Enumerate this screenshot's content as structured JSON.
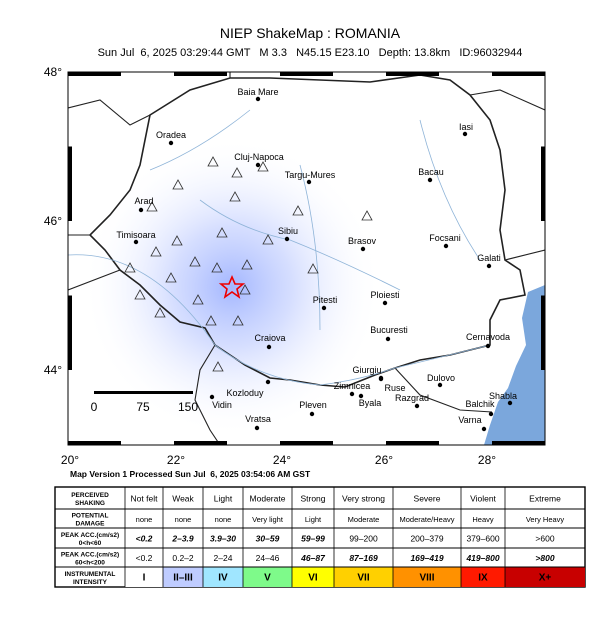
{
  "header": {
    "title": "NIEP ShakeMap : ROMANIA",
    "subtitle": "Sun Jul  6, 2025 03:29:44 GMT   M 3.3   N45.15 E23.10   Depth: 13.8km   ID:96032944"
  },
  "map": {
    "lat_labels": [
      "48°",
      "46°",
      "44°"
    ],
    "lon_labels": [
      "20°",
      "22°",
      "24°",
      "26°",
      "28°"
    ],
    "cities": [
      "Baia Mare",
      "Oradea",
      "Cluj-Napoca",
      "Targu-Mures",
      "Iasi",
      "Bacau",
      "Arad",
      "Timisoara",
      "Sibiu",
      "Brasov",
      "Focsani",
      "Galati",
      "Pitesti",
      "Ploiesti",
      "Bucuresti",
      "Cernavoda",
      "Craiova",
      "Giurgiu",
      "Zimnicea",
      "Ruse",
      "Dulovo",
      "Kozloduy",
      "Vidin",
      "Pleven",
      "Byala",
      "Razgrad",
      "Shabla",
      "Balchik",
      "Vratsa",
      "Varna"
    ],
    "scale_labels": [
      "0",
      "75",
      "150"
    ]
  },
  "footer": {
    "version": "Map Version 1 Processed Sun Jul  6, 2025 03:54:06 AM GST"
  },
  "legend": {
    "rows": [
      {
        "label": [
          "PERCEIVED",
          "SHAKING"
        ],
        "cells": [
          "Not felt",
          "Weak",
          "Light",
          "Moderate",
          "Strong",
          "Very strong",
          "Severe",
          "Violent",
          "Extreme"
        ]
      },
      {
        "label": [
          "POTENTIAL",
          "DAMAGE"
        ],
        "cells": [
          "none",
          "none",
          "none",
          "Very light",
          "Light",
          "Moderate",
          "Moderate/Heavy",
          "Heavy",
          "Very Heavy"
        ]
      },
      {
        "label": [
          "PEAK ACC.(cm/s2)",
          "0<h<60"
        ],
        "cells": [
          "<0.2",
          "2–3.9",
          "3.9–30",
          "30–59",
          "59–99",
          "99–200",
          "200–379",
          "379–600",
          ">600"
        ]
      },
      {
        "label": [
          "PEAK ACC.(cm/s2)",
          "60<h<200"
        ],
        "cells": [
          "<0.2",
          "0.2–2",
          "2–24",
          "24–46",
          "46–87",
          "87–169",
          "169–419",
          "419–800",
          ">800"
        ]
      },
      {
        "label": [
          "INSTRUMENTAL",
          "INTENSITY"
        ],
        "cells": [
          "I",
          "II–III",
          "IV",
          "V",
          "VI",
          "VII",
          "VIII",
          "IX",
          "X+"
        ]
      }
    ]
  }
}
